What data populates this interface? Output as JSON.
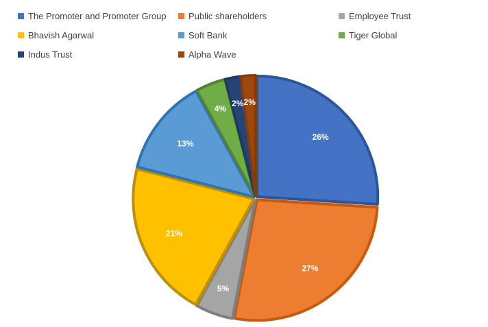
{
  "chart_data": {
    "type": "pie",
    "title": "",
    "legend_position": "top",
    "categories": [
      "The Promoter and Promoter Group",
      "Public shareholders",
      "Employee Trust",
      "Bhavish Agarwal",
      "Soft Bank",
      "Tiger Global",
      "Indus Trust",
      "Alpha Wave"
    ],
    "values": [
      26,
      27,
      5,
      21,
      13,
      4,
      2,
      2
    ],
    "labels": [
      "26%",
      "27%",
      "5%",
      "21%",
      "13%",
      "4%",
      "2%",
      "2%"
    ],
    "colors": [
      "#4472C4",
      "#ED7D31",
      "#A5A5A5",
      "#FFC000",
      "#5B9BD5",
      "#70AD47",
      "#264478",
      "#9E480E"
    ],
    "border_colors": [
      "#2F5597",
      "#C55A11",
      "#7F7F7F",
      "#BF9000",
      "#2E75B6",
      "#538135",
      "#1F3864",
      "#843C0C"
    ]
  }
}
